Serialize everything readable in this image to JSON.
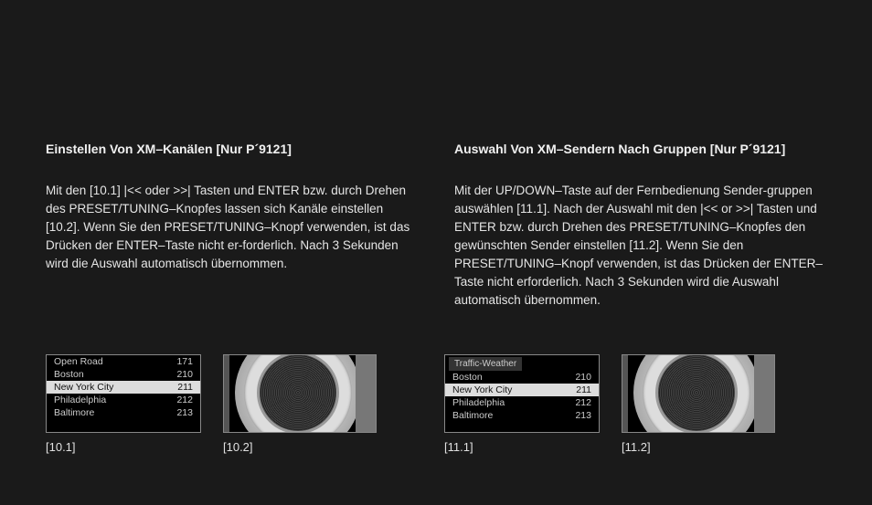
{
  "left": {
    "heading": "Einstellen Von XM–Kanälen [Nur P´9121]",
    "body": "Mit den [10.1] |<< oder >>| Tasten und ENTER bzw. durch Drehen des PRESET/TUNING–Knopfes lassen sich Kanäle einstellen [10.2]. Wenn Sie den PRESET/TUNING–Knopf verwenden, ist das Drücken der ENTER–Taste nicht er-forderlich. Nach 3 Sekunden wird die Auswahl automatisch übernommen."
  },
  "right": {
    "heading": "Auswahl Von XM–Sendern Nach Gruppen [Nur P´9121]",
    "body": "Mit der UP/DOWN–Taste auf der Fernbedienung Sender-gruppen auswählen [11.1]. Nach der Auswahl mit den |<< or >>| Tasten und ENTER bzw. durch Drehen des PRESET/TUNING–Knopfes den gewünschten Sender einstellen [11.2]. Wenn Sie den PRESET/TUNING–Knopf verwenden, ist das Drücken der ENTER–Taste nicht erforderlich. Nach 3 Sekunden wird die Auswahl automatisch übernommen."
  },
  "figures": {
    "fig101": {
      "caption": "[10.1]",
      "rows": [
        {
          "label": "Open Road",
          "value": "171",
          "selected": false
        },
        {
          "label": "Boston",
          "value": "210",
          "selected": false
        },
        {
          "label": "New York City",
          "value": "211",
          "selected": true
        },
        {
          "label": "Philadelphia",
          "value": "212",
          "selected": false
        },
        {
          "label": "Baltimore",
          "value": "213",
          "selected": false
        }
      ]
    },
    "fig102": {
      "caption": "[10.2]"
    },
    "fig111": {
      "caption": "[11.1]",
      "header_tab": "Traffic-Weather",
      "rows": [
        {
          "label": "Boston",
          "value": "210",
          "selected": false
        },
        {
          "label": "New York City",
          "value": "211",
          "selected": true
        },
        {
          "label": "Philadelphia",
          "value": "212",
          "selected": false
        },
        {
          "label": "Baltimore",
          "value": "213",
          "selected": false
        }
      ]
    },
    "fig112": {
      "caption": "[11.2]"
    }
  },
  "colors": {
    "page_bg": "#1a1a1a",
    "text": "#e5e5e5",
    "heading": "#f0f0f0",
    "display_border": "#888888",
    "display_bg": "#000000",
    "selected_bg": "#dddddd",
    "selected_text": "#111111"
  }
}
